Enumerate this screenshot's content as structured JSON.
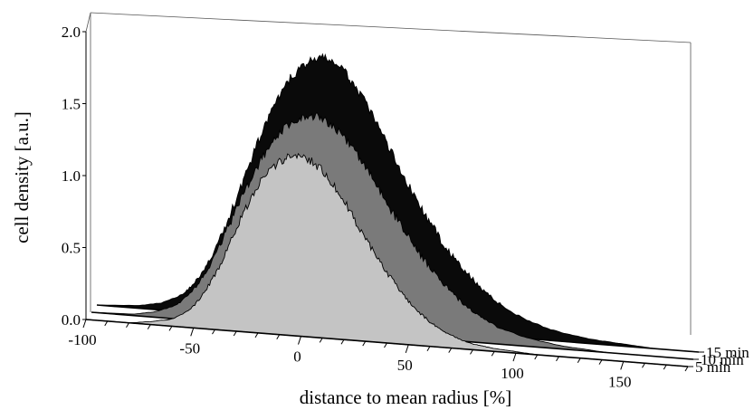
{
  "chart_data": {
    "type": "area",
    "projection": "3d-waterfall",
    "xlabel": "distance to mean radius [%]",
    "ylabel": "cell density [a.u.]",
    "xlim": [
      -100,
      180
    ],
    "ylim": [
      0,
      2.0
    ],
    "x_ticks": [
      -100,
      -50,
      0,
      50,
      100,
      150
    ],
    "x_tick_labels": [
      "-100",
      "-50",
      "0",
      "50",
      "100",
      "150"
    ],
    "y_ticks": [
      0,
      0.5,
      1.0,
      1.5,
      2.0
    ],
    "y_tick_labels": [
      "0.0",
      "0.5",
      "1.0",
      "1.5",
      "2.0"
    ],
    "grid": false,
    "colors": {
      "5 min": "#c4c4c4",
      "10 min": "#7a7a7a",
      "15 min": "#0a0a0a"
    },
    "series": [
      {
        "name": "15 min",
        "x": [
          -100,
          -80,
          -70,
          -60,
          -55,
          -50,
          -45,
          -40,
          -35,
          -30,
          -25,
          -20,
          -15,
          -10,
          -5,
          0,
          5,
          10,
          15,
          20,
          25,
          30,
          35,
          40,
          45,
          50,
          55,
          60,
          65,
          70,
          75,
          80,
          85,
          90,
          100,
          110,
          120,
          130,
          140,
          150,
          160,
          170,
          180
        ],
        "values": [
          0.0,
          0.02,
          0.05,
          0.12,
          0.2,
          0.3,
          0.45,
          0.62,
          0.82,
          1.02,
          1.22,
          1.4,
          1.55,
          1.68,
          1.76,
          1.82,
          1.84,
          1.82,
          1.76,
          1.66,
          1.55,
          1.42,
          1.28,
          1.14,
          1.0,
          0.87,
          0.75,
          0.64,
          0.54,
          0.45,
          0.38,
          0.31,
          0.25,
          0.2,
          0.13,
          0.08,
          0.05,
          0.03,
          0.02,
          0.01,
          0.0,
          0.0,
          0.0
        ]
      },
      {
        "name": "10 min",
        "x": [
          -100,
          -80,
          -70,
          -60,
          -55,
          -50,
          -45,
          -40,
          -35,
          -30,
          -25,
          -20,
          -15,
          -10,
          -5,
          0,
          5,
          10,
          15,
          20,
          25,
          30,
          35,
          40,
          45,
          50,
          55,
          60,
          65,
          70,
          75,
          80,
          85,
          90,
          100,
          110,
          120,
          130,
          140,
          150,
          160,
          170,
          180
        ],
        "values": [
          0.0,
          0.01,
          0.04,
          0.1,
          0.17,
          0.26,
          0.39,
          0.54,
          0.71,
          0.88,
          1.04,
          1.18,
          1.3,
          1.39,
          1.45,
          1.48,
          1.48,
          1.45,
          1.39,
          1.31,
          1.21,
          1.1,
          0.98,
          0.86,
          0.75,
          0.64,
          0.54,
          0.45,
          0.37,
          0.3,
          0.24,
          0.19,
          0.15,
          0.11,
          0.07,
          0.04,
          0.02,
          0.01,
          0.0,
          0.0,
          0.0,
          0.0,
          0.0
        ]
      },
      {
        "name": "5 min",
        "x": [
          -100,
          -80,
          -70,
          -60,
          -55,
          -50,
          -45,
          -40,
          -35,
          -30,
          -25,
          -20,
          -15,
          -10,
          -5,
          0,
          5,
          10,
          15,
          20,
          25,
          30,
          35,
          40,
          45,
          50,
          55,
          60,
          65,
          70,
          75,
          80,
          85,
          90,
          100,
          110,
          120,
          130,
          140,
          150,
          160,
          170,
          180
        ],
        "values": [
          0.0,
          0.0,
          0.02,
          0.05,
          0.09,
          0.15,
          0.25,
          0.38,
          0.54,
          0.71,
          0.88,
          1.02,
          1.13,
          1.2,
          1.24,
          1.25,
          1.22,
          1.16,
          1.07,
          0.96,
          0.84,
          0.72,
          0.6,
          0.49,
          0.39,
          0.3,
          0.23,
          0.17,
          0.12,
          0.09,
          0.06,
          0.04,
          0.03,
          0.02,
          0.01,
          0.0,
          0.0,
          0.0,
          0.0,
          0.0,
          0.0,
          0.0,
          0.0
        ]
      }
    ]
  }
}
